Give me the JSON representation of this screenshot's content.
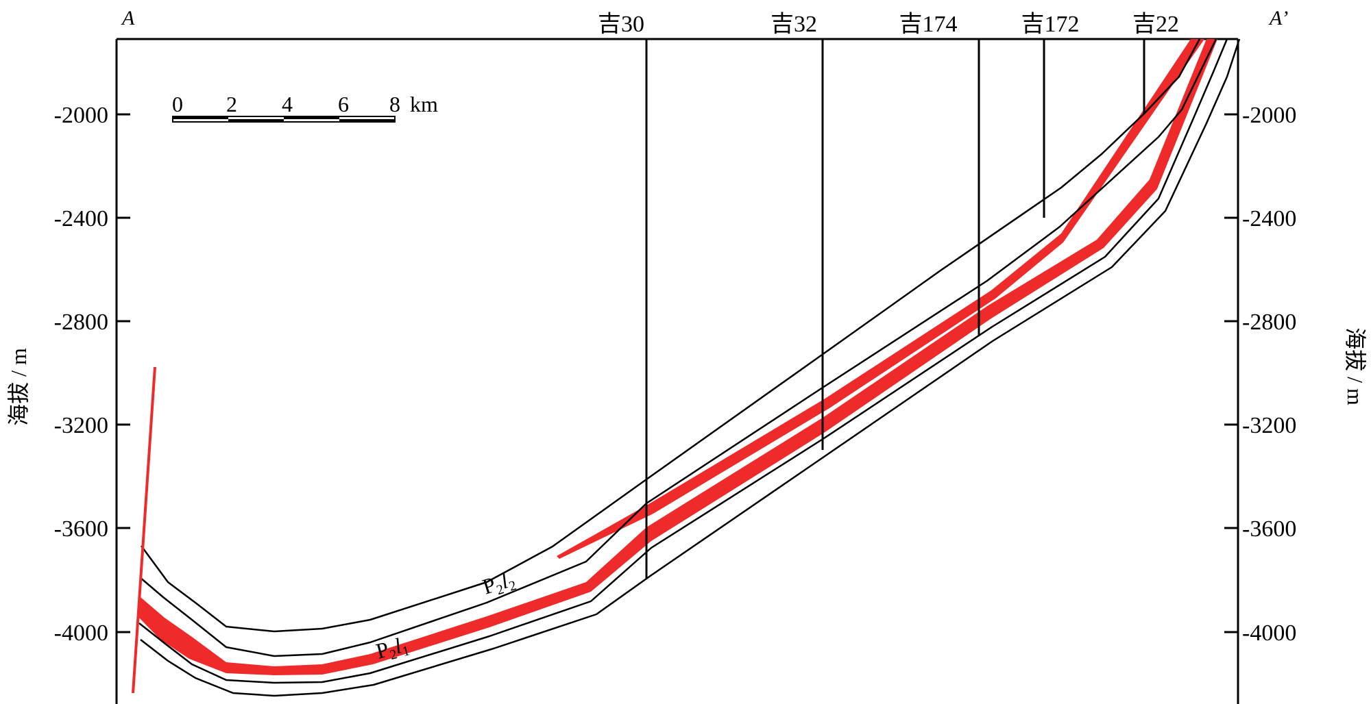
{
  "section": {
    "start_label": "A",
    "end_label": "A’"
  },
  "axes": {
    "left_title": "海拔 / m",
    "right_title": "海拔 / m",
    "ticks": [
      "-2000",
      "-2400",
      "-2800",
      "-3200",
      "-3600",
      "-4000"
    ],
    "ylim": [
      -1720,
      -4260
    ]
  },
  "scale_bar": {
    "labels": [
      "0",
      "2",
      "4",
      "6",
      "8"
    ],
    "unit": "km"
  },
  "wells": [
    {
      "name": "吉30",
      "top": -1720,
      "bottom": -3820
    },
    {
      "name": "吉32",
      "top": -1720,
      "bottom": -3280
    },
    {
      "name": "吉174",
      "top": -1720,
      "bottom": -2860
    },
    {
      "name": "吉172",
      "top": -1720,
      "bottom": -2410
    },
    {
      "name": "吉22",
      "top": -1720,
      "bottom": -2000
    }
  ],
  "units": [
    {
      "main": "P",
      "sub1": "2",
      "letter": "l",
      "sub2": "2"
    },
    {
      "main": "P",
      "sub1": "2",
      "letter": "l",
      "sub2": "1"
    }
  ],
  "colors": {
    "line": "#000000",
    "reservoir": "#ee2a2a",
    "fault": "#ee2a2a"
  }
}
